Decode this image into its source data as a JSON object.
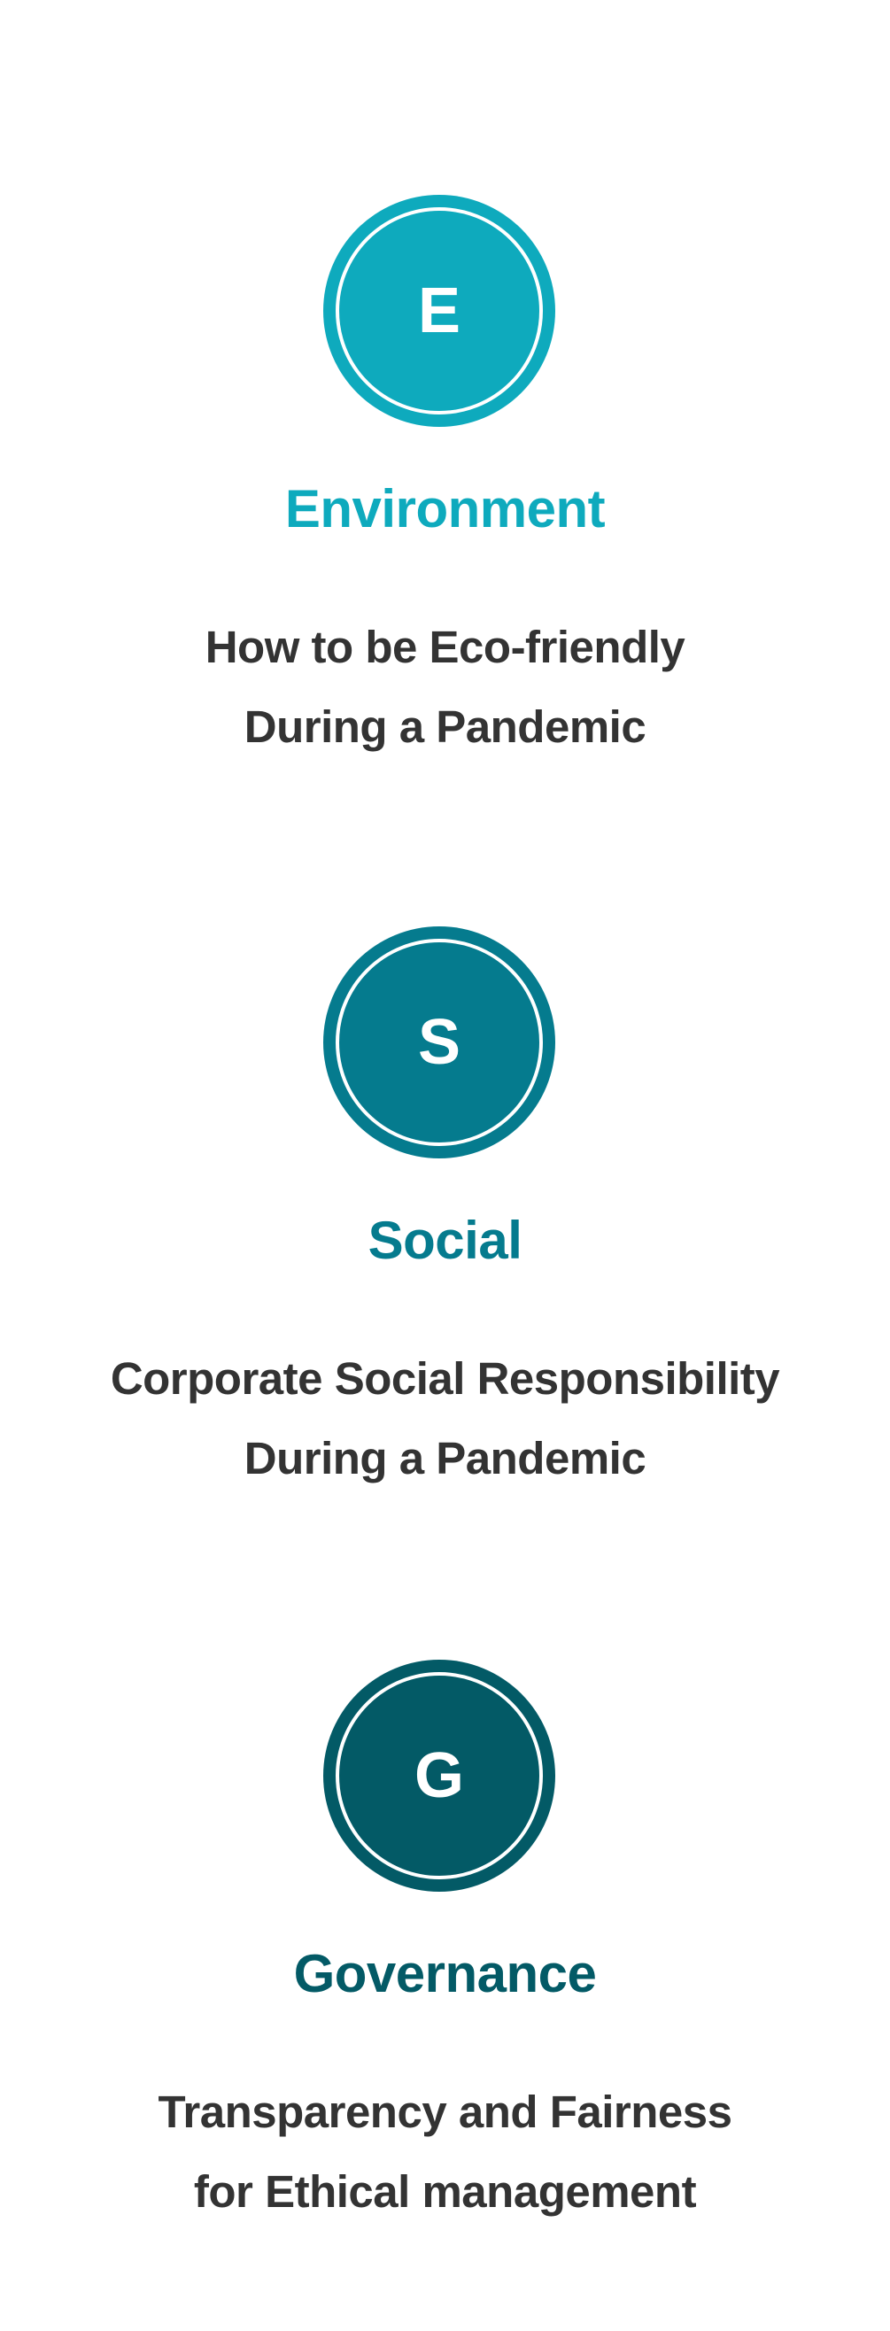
{
  "pillars": [
    {
      "letter": "E",
      "title": "Environment",
      "line1": "How to be Eco-friendly",
      "line2": "During a Pandemic",
      "color": "#0eaabd"
    },
    {
      "letter": "S",
      "title": "Social",
      "line1": "Corporate Social Responsibility",
      "line2": "During a Pandemic",
      "color": "#057b8e"
    },
    {
      "letter": "G",
      "title": "Governance",
      "line1": "Transparency and Fairness",
      "line2": "for Ethical management",
      "color": "#035a66"
    }
  ]
}
